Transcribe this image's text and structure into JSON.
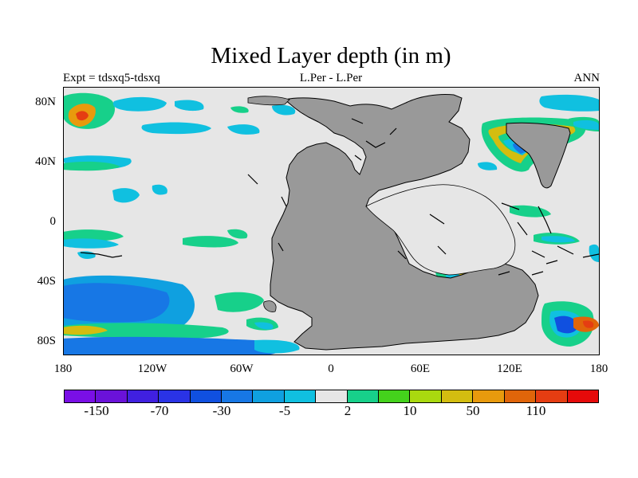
{
  "title": "Mixed Layer depth (in m)",
  "left_label": "Expt = tdsxq5-tdsxq",
  "center_label": "L.Per - L.Per",
  "right_label": "ANN",
  "lat_ticks": [
    "80N",
    "40N",
    "0",
    "40S",
    "80S"
  ],
  "lon_ticks": [
    "180",
    "120W",
    "60W",
    "0",
    "60E",
    "120E",
    "180"
  ],
  "colorbar": {
    "colors": [
      "#7a0fe6",
      "#6a12d9",
      "#4020e0",
      "#2a33e6",
      "#1050e0",
      "#1777e5",
      "#0fa0e0",
      "#10c0e0",
      "#e6e6e6",
      "#17d08a",
      "#44d21c",
      "#a9d90f",
      "#d3bd10",
      "#e89a0d",
      "#e0650a",
      "#e53d12",
      "#e60a0a"
    ],
    "labels": [
      "-150",
      "-70",
      "-30",
      "-5",
      "2",
      "10",
      "50",
      "110"
    ]
  },
  "colors": {
    "land": "#999999",
    "ocean_background": "#e6e6e6"
  }
}
